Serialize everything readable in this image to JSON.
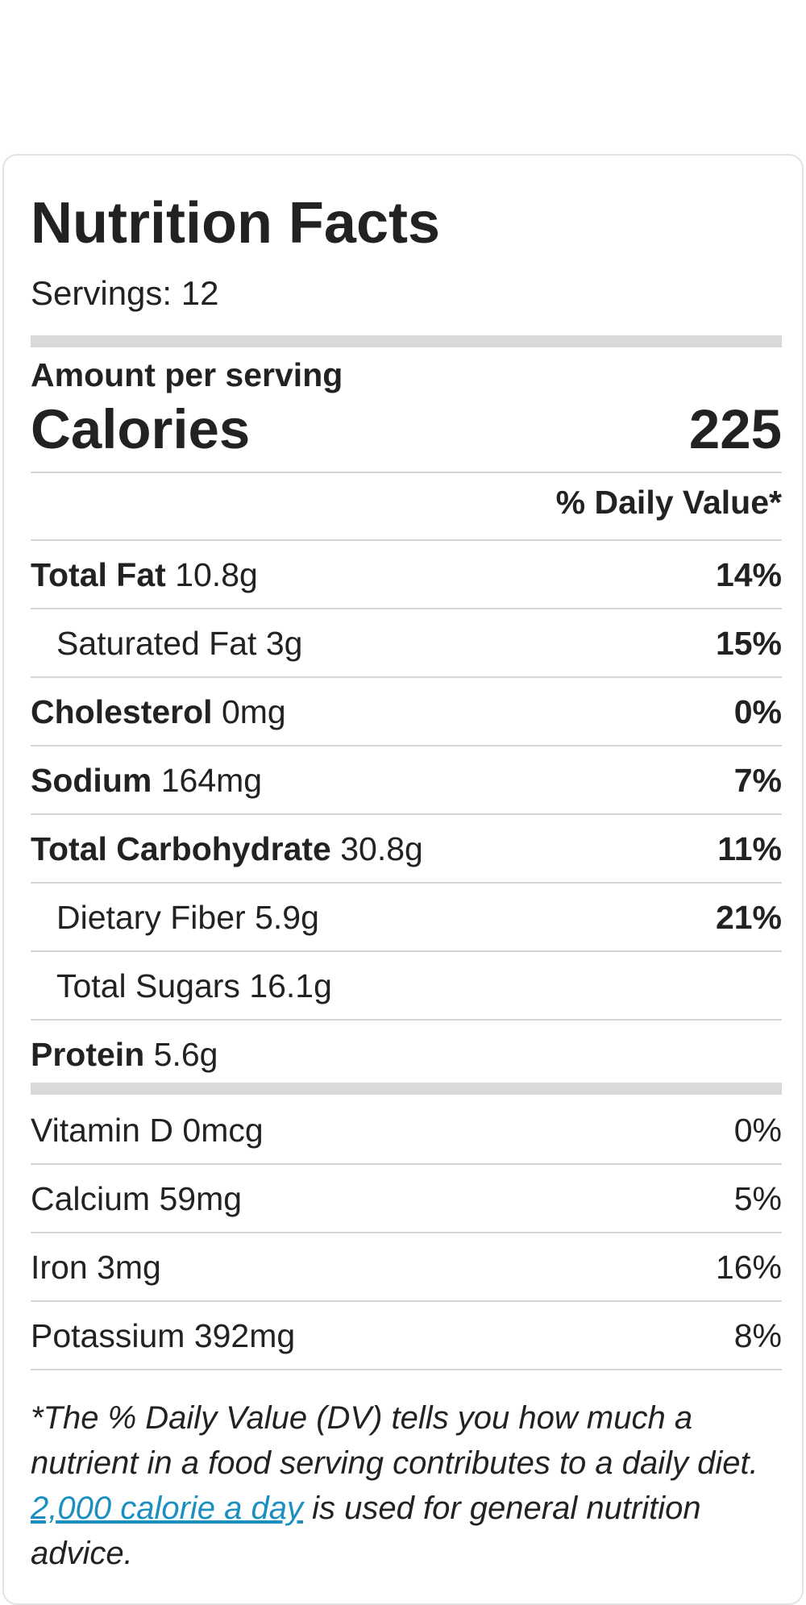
{
  "label": {
    "title": "Nutrition Facts",
    "servings": "Servings: 12",
    "amount_per_serving": "Amount per serving",
    "calories_label": "Calories",
    "calories_value": "225",
    "dv_header": "% Daily Value*"
  },
  "nutrients": [
    {
      "name": "Total Fat",
      "amount": "10.8g",
      "dv": "14%"
    },
    {
      "name": "Saturated Fat",
      "amount": "3g",
      "dv": "15%"
    },
    {
      "name": "Cholesterol",
      "amount": "0mg",
      "dv": "0%"
    },
    {
      "name": "Sodium",
      "amount": "164mg",
      "dv": "7%"
    },
    {
      "name": "Total Carbohydrate",
      "amount": "30.8g",
      "dv": "11%"
    },
    {
      "name": "Dietary Fiber",
      "amount": "5.9g",
      "dv": "21%"
    },
    {
      "name": "Total Sugars",
      "amount": "16.1g",
      "dv": ""
    },
    {
      "name": "Protein",
      "amount": "5.6g",
      "dv": ""
    }
  ],
  "vitamins": [
    {
      "name": "Vitamin D",
      "amount": "0mcg",
      "dv": "0%"
    },
    {
      "name": "Calcium",
      "amount": "59mg",
      "dv": "5%"
    },
    {
      "name": "Iron",
      "amount": "3mg",
      "dv": "16%"
    },
    {
      "name": "Potassium",
      "amount": "392mg",
      "dv": "8%"
    }
  ],
  "footnote": {
    "text_before": "*The % Daily Value (DV) tells you how much a nutrient in a food serving contributes to a daily diet. ",
    "link_text": "2,000 calorie a day",
    "text_after": " is used for general nutrition advice."
  },
  "colors": {
    "text": "#222222",
    "link": "#1a8fc0",
    "thick_bar": "#d9d9d9",
    "divider": "#d6d6d6",
    "panel_border": "#e2e2e2"
  }
}
